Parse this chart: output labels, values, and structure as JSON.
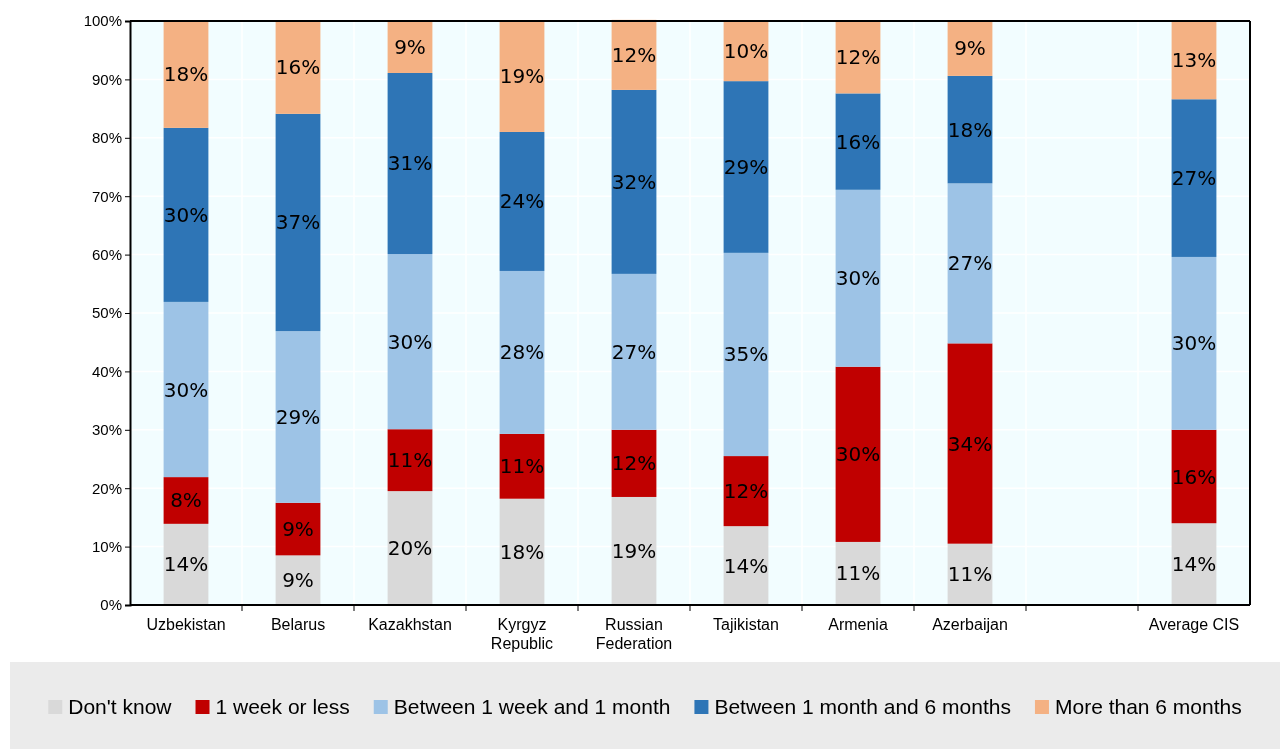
{
  "chart_data": {
    "type": "bar",
    "stacked": true,
    "categories": [
      "Uzbekistan",
      "Belarus",
      "Kazakhstan",
      "Kyrgyz Republic",
      "Russian Federation",
      "Tajikistan",
      "Armenia",
      "Azerbaijan",
      null,
      "Average CIS"
    ],
    "series": [
      {
        "name": "Don't know",
        "color": "#d9d9d9",
        "values": [
          13.9,
          8.5,
          19.5,
          18.2,
          18.5,
          13.5,
          10.8,
          10.5,
          null,
          14.0
        ],
        "value_labels": [
          "14%",
          "9%",
          "20%",
          "18%",
          "19%",
          "14%",
          "11%",
          "11%",
          null,
          "14%"
        ]
      },
      {
        "name": "1 week or less",
        "color": "#c00000",
        "values": [
          8.0,
          9.0,
          10.6,
          11.1,
          11.5,
          12.0,
          30.0,
          34.3,
          null,
          16.0
        ],
        "value_labels": [
          "8%",
          "9%",
          "11%",
          "11%",
          "12%",
          "12%",
          "30%",
          "34%",
          null,
          "16%"
        ]
      },
      {
        "name": "Between 1 week and 1 month",
        "color": "#9dc3e6",
        "values": [
          30.0,
          29.4,
          30.0,
          27.9,
          26.7,
          34.8,
          30.3,
          27.4,
          null,
          29.6
        ],
        "value_labels": [
          "30%",
          "29%",
          "30%",
          "28%",
          "27%",
          "35%",
          "30%",
          "27%",
          null,
          "30%"
        ]
      },
      {
        "name": "Between 1 month and 6 months",
        "color": "#2e75b6",
        "values": [
          29.8,
          37.2,
          31.0,
          23.8,
          31.5,
          29.4,
          16.5,
          18.4,
          null,
          27.0
        ],
        "value_labels": [
          "30%",
          "37%",
          "31%",
          "24%",
          "32%",
          "29%",
          "16%",
          "18%",
          null,
          "27%"
        ]
      },
      {
        "name": "More than 6 months",
        "color": "#f4b183",
        "values": [
          18.3,
          15.9,
          8.9,
          19.0,
          12.0,
          10.3,
          12.4,
          9.4,
          null,
          13.4
        ],
        "value_labels": [
          "18%",
          "16%",
          "9%",
          "19%",
          "12%",
          "10%",
          "12%",
          "9%",
          null,
          "13%"
        ]
      }
    ],
    "ylim": [
      0,
      100
    ],
    "yticks": [
      {
        "value": 0,
        "label": "0%"
      },
      {
        "value": 10,
        "label": "10%"
      },
      {
        "value": 20,
        "label": "20%"
      },
      {
        "value": 30,
        "label": "30%"
      },
      {
        "value": 40,
        "label": "40%"
      },
      {
        "value": 50,
        "label": "50%"
      },
      {
        "value": 60,
        "label": "60%"
      },
      {
        "value": 70,
        "label": "70%"
      },
      {
        "value": 80,
        "label": "80%"
      },
      {
        "value": 90,
        "label": "90%"
      },
      {
        "value": 100,
        "label": "100%"
      }
    ],
    "grid": true,
    "legend": "bottom"
  }
}
